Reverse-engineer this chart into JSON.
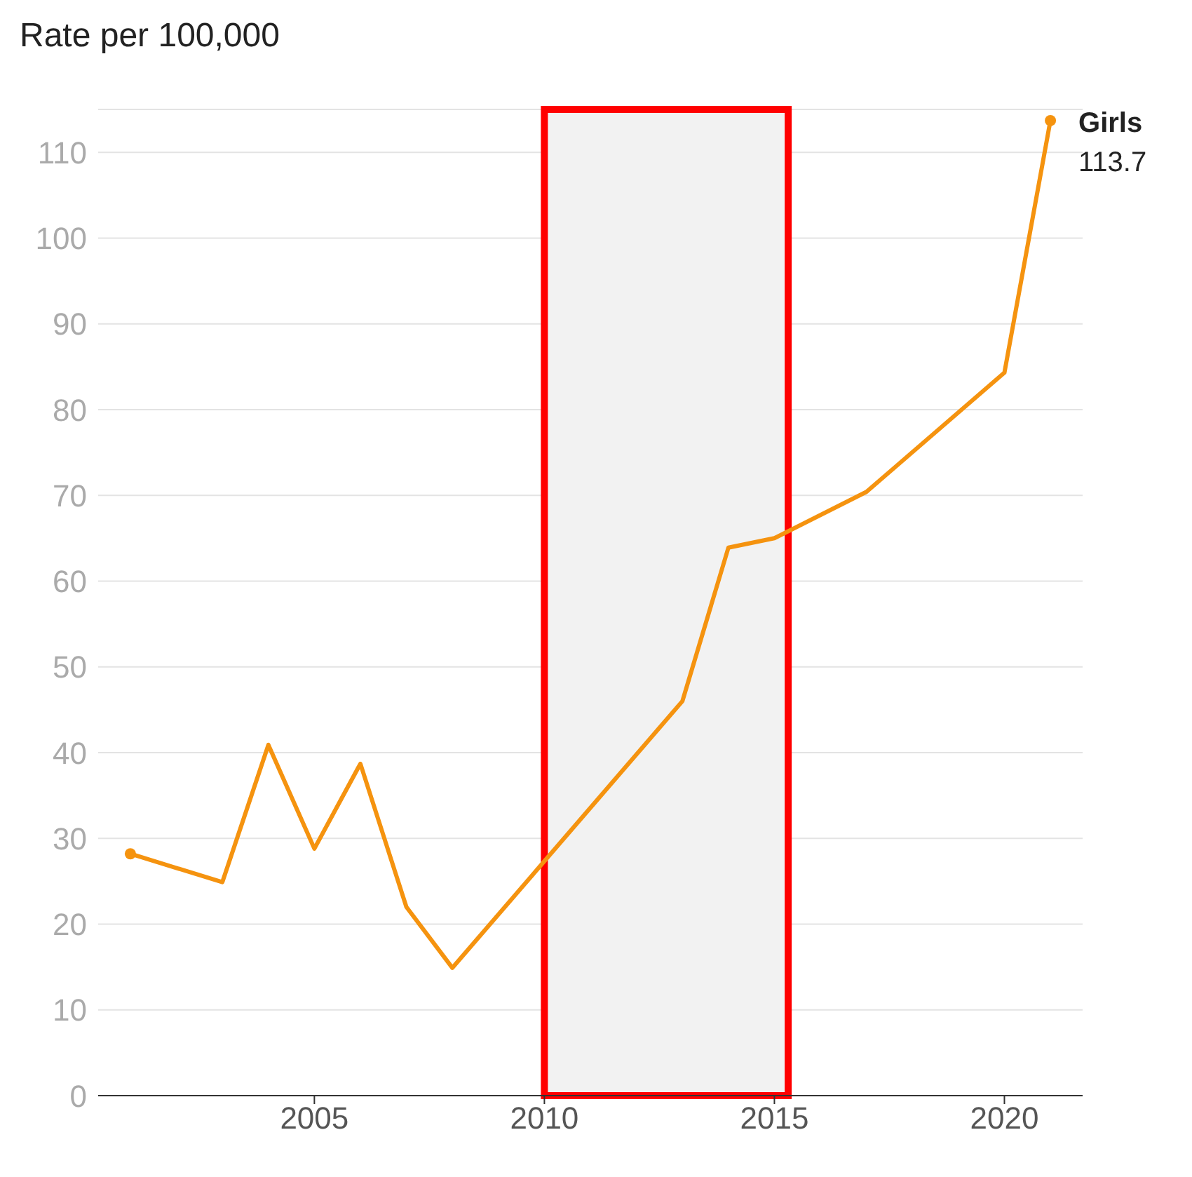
{
  "chart_data": {
    "type": "line",
    "ylabel": "Rate per 100,000",
    "x": [
      2001,
      2003,
      2004,
      2005,
      2006,
      2007,
      2008,
      2013,
      2014,
      2015,
      2017,
      2020,
      2021
    ],
    "series": [
      {
        "name": "Girls",
        "color": "#f5930f",
        "values": [
          28.2,
          24.9,
          40.9,
          28.8,
          38.7,
          22,
          14.9,
          46,
          63.9,
          65,
          70.4,
          84.3,
          113.7
        ]
      }
    ],
    "xlim": [
      2000.3,
      2021.7
    ],
    "xticks": [
      2005,
      2010,
      2015,
      2020
    ],
    "ylim": [
      0,
      115
    ],
    "yticks": [
      0,
      10,
      20,
      30,
      40,
      50,
      60,
      70,
      80,
      90,
      100,
      110
    ],
    "grid": "y",
    "bands": [
      {
        "axis": "x",
        "from": 2010,
        "to": 2015.3,
        "color": "#f2f2f2"
      }
    ],
    "annotations": [
      {
        "text": "113.7",
        "x": 2021,
        "y": 113.7
      }
    ]
  }
}
